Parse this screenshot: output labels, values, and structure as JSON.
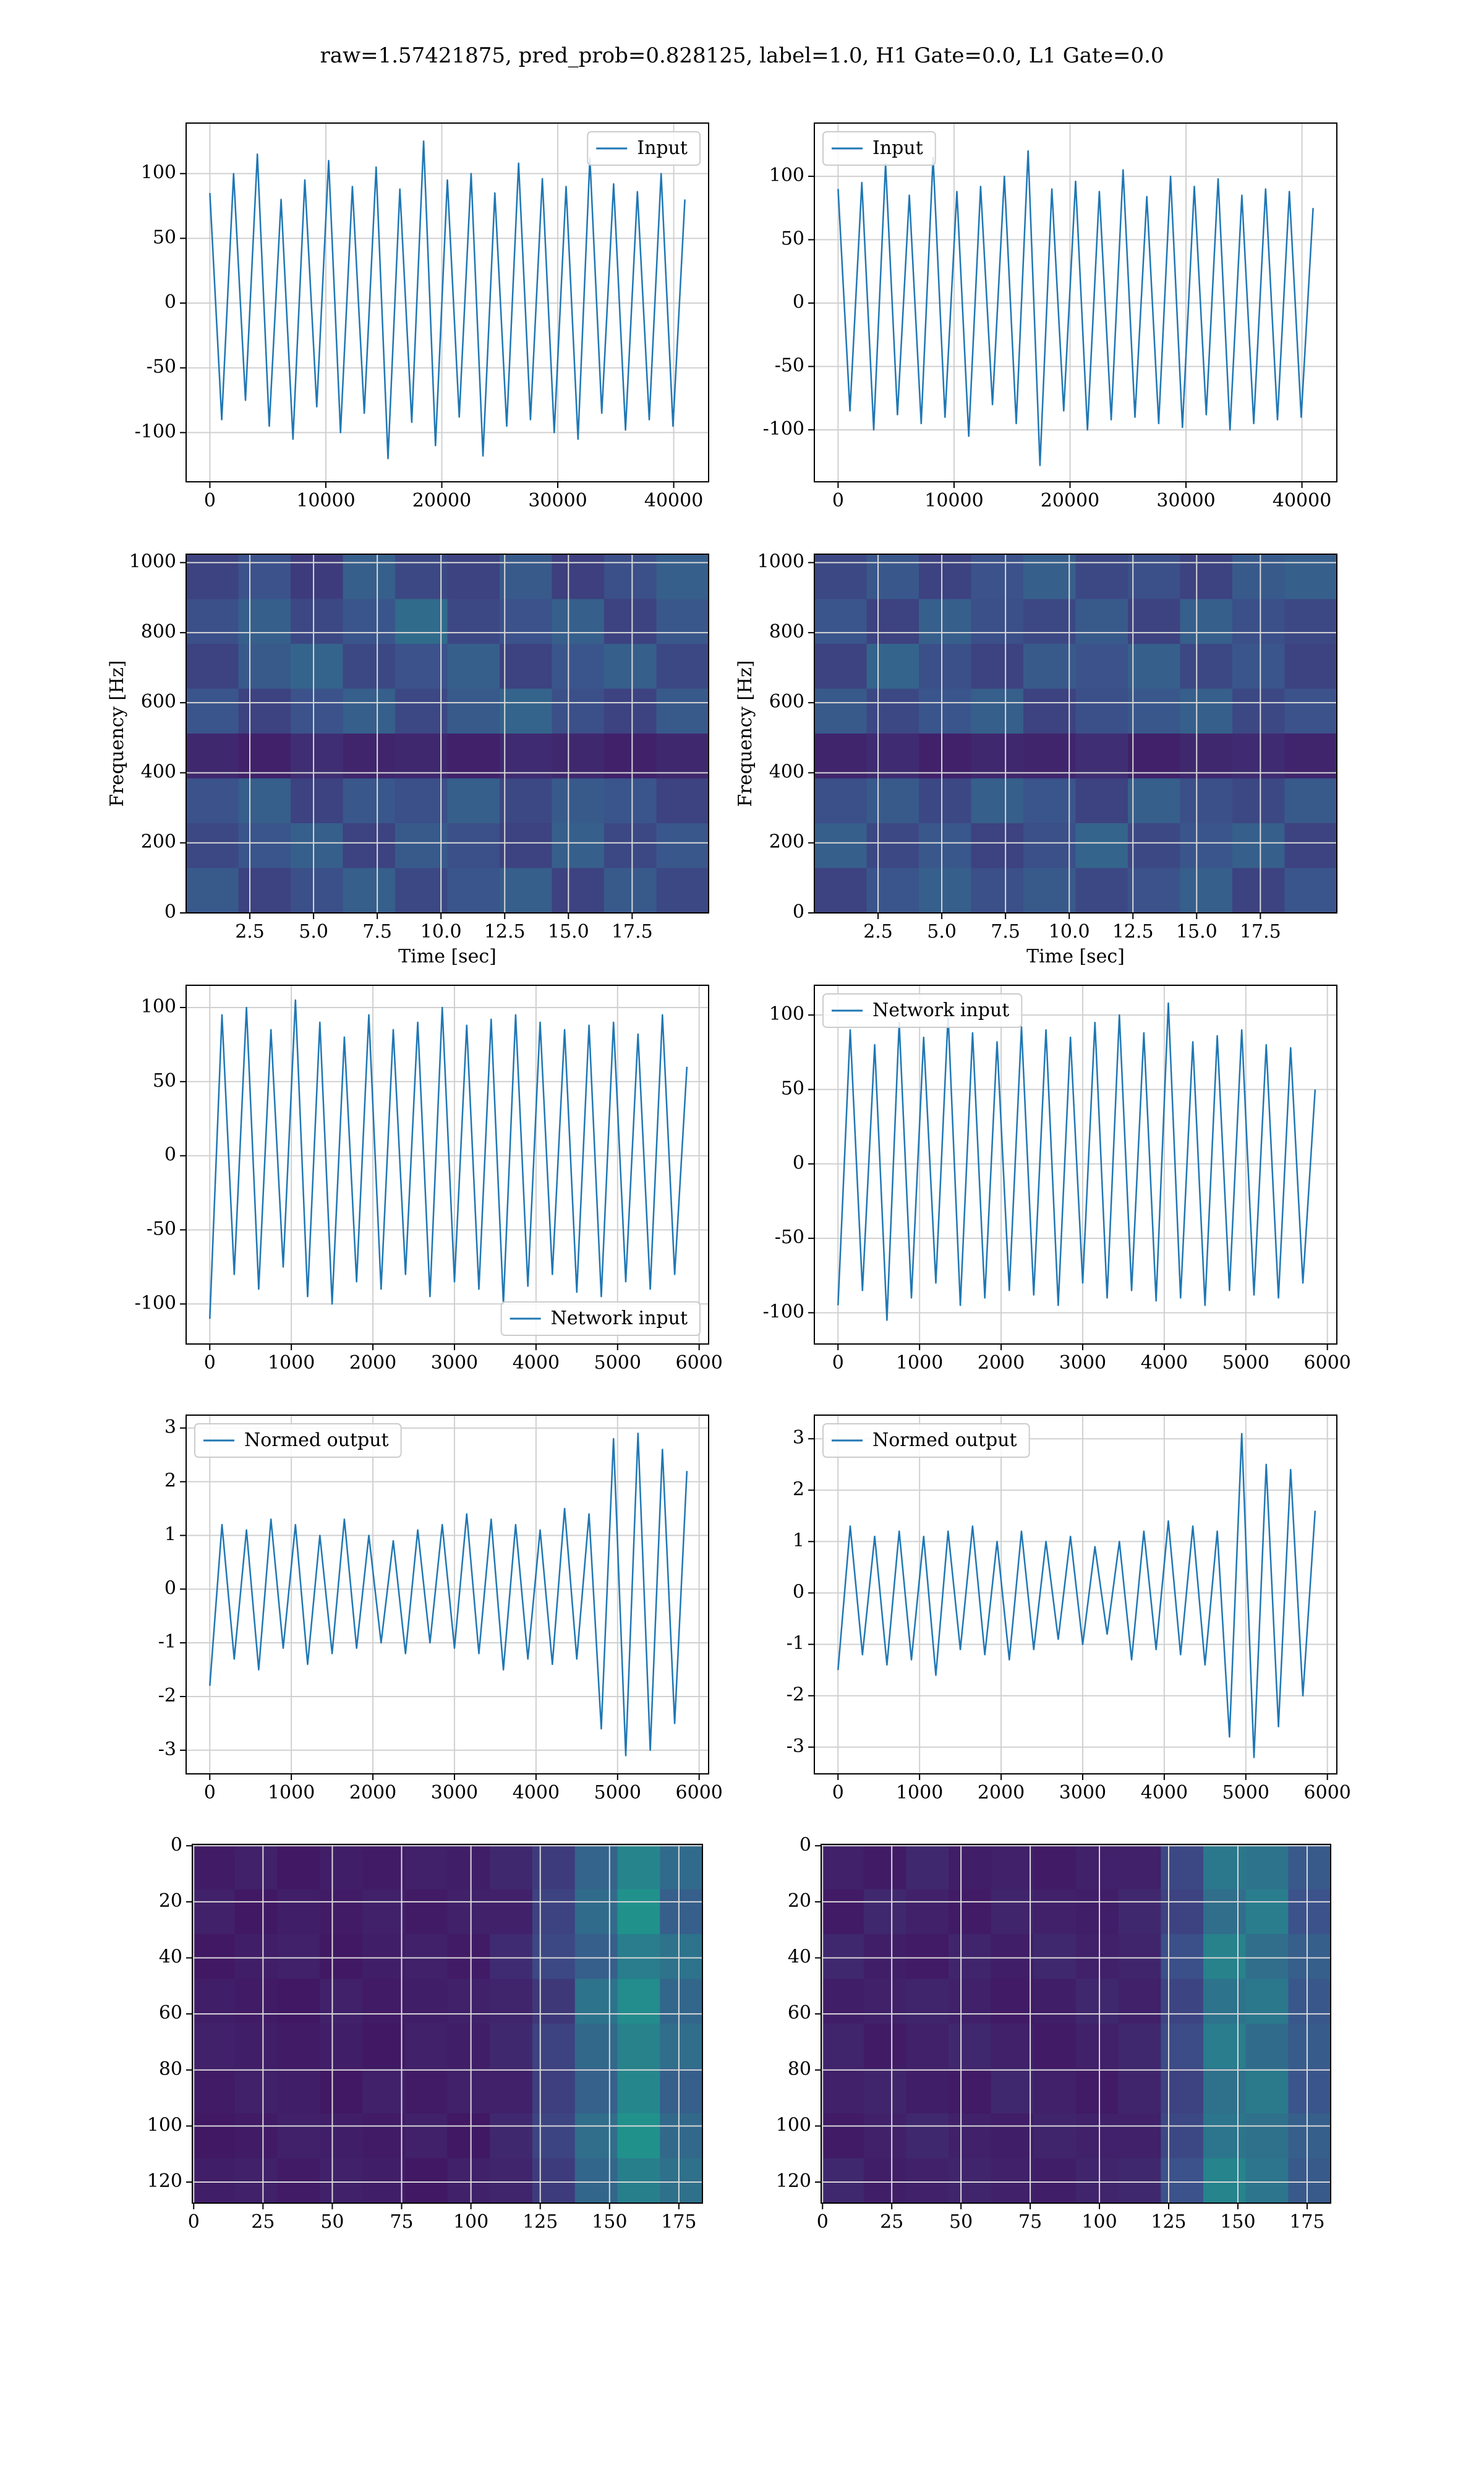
{
  "title": "raw=1.57421875, pred_prob=0.828125, label=1.0, H1 Gate=0.0, L1 Gate=0.0",
  "chart_data": [
    {
      "type": "line",
      "legend": "upper right",
      "grid": true,
      "xlim": [
        -2048,
        43008
      ],
      "ylim": [
        -138,
        139
      ],
      "xticks": [
        0,
        10000,
        20000,
        30000,
        40000
      ],
      "yticks": [
        -100,
        -50,
        0,
        50,
        100
      ],
      "x": [
        0,
        1024,
        2048,
        3072,
        4096,
        5120,
        6144,
        7168,
        8192,
        9216,
        10240,
        11264,
        12288,
        13312,
        14336,
        15360,
        16384,
        17408,
        18432,
        19456,
        20480,
        21504,
        22528,
        23552,
        24576,
        25600,
        26624,
        27648,
        28672,
        29696,
        30720,
        31744,
        32768,
        33792,
        34816,
        35840,
        36864,
        37888,
        38912,
        39936,
        40960
      ],
      "series": [
        {
          "name": "Input",
          "color": "#1f77b4",
          "values": [
            85,
            -90,
            100,
            -75,
            115,
            -95,
            80,
            -105,
            95,
            -80,
            110,
            -100,
            90,
            -85,
            105,
            -120,
            88,
            -92,
            125,
            -110,
            95,
            -88,
            100,
            -118,
            85,
            -95,
            108,
            -90,
            96,
            -100,
            90,
            -105,
            112,
            -85,
            92,
            -98,
            86,
            -90,
            100,
            -95,
            80
          ]
        }
      ]
    },
    {
      "type": "line",
      "legend": "upper left",
      "grid": true,
      "xlim": [
        -2048,
        43008
      ],
      "ylim": [
        -141,
        142
      ],
      "xticks": [
        0,
        10000,
        20000,
        30000,
        40000
      ],
      "yticks": [
        -100,
        -50,
        0,
        50,
        100
      ],
      "x": [
        0,
        1024,
        2048,
        3072,
        4096,
        5120,
        6144,
        7168,
        8192,
        9216,
        10240,
        11264,
        12288,
        13312,
        14336,
        15360,
        16384,
        17408,
        18432,
        19456,
        20480,
        21504,
        22528,
        23552,
        24576,
        25600,
        26624,
        27648,
        28672,
        29696,
        30720,
        31744,
        32768,
        33792,
        34816,
        35840,
        36864,
        37888,
        38912,
        39936,
        40960
      ],
      "series": [
        {
          "name": "Input",
          "color": "#1f77b4",
          "values": [
            90,
            -85,
            95,
            -100,
            110,
            -88,
            85,
            -95,
            115,
            -90,
            88,
            -105,
            92,
            -80,
            100,
            -95,
            120,
            -128,
            90,
            -85,
            96,
            -100,
            88,
            -92,
            105,
            -90,
            84,
            -95,
            100,
            -98,
            92,
            -88,
            98,
            -100,
            85,
            -95,
            90,
            -92,
            88,
            -90,
            75
          ]
        }
      ]
    },
    {
      "type": "heatmap",
      "colormap": "viridis",
      "grid": true,
      "xlabel": "Time [sec]",
      "ylabel": "Frequency [Hz]",
      "xlim": [
        0,
        20.5
      ],
      "ylim": [
        0,
        1024
      ],
      "xticks": [
        2.5,
        {
          "value": 5,
          "label": "5.0"
        },
        7.5,
        {
          "value": 10,
          "label": "10.0"
        },
        12.5,
        {
          "value": 15,
          "label": "15.0"
        },
        17.5
      ],
      "yticks": [
        0,
        200,
        400,
        600,
        800,
        1000
      ],
      "z": [
        [
          0.2,
          0.25,
          0.18,
          0.3,
          0.22,
          0.2,
          0.28,
          0.19,
          0.24,
          0.3
        ],
        [
          0.24,
          0.3,
          0.22,
          0.26,
          0.35,
          0.22,
          0.25,
          0.3,
          0.2,
          0.27
        ],
        [
          0.2,
          0.28,
          0.32,
          0.22,
          0.25,
          0.3,
          0.2,
          0.26,
          0.3,
          0.22
        ],
        [
          0.26,
          0.2,
          0.25,
          0.3,
          0.22,
          0.28,
          0.32,
          0.24,
          0.2,
          0.28
        ],
        [
          0.12,
          0.1,
          0.14,
          0.11,
          0.12,
          0.1,
          0.13,
          0.12,
          0.1,
          0.12
        ],
        [
          0.25,
          0.3,
          0.2,
          0.27,
          0.24,
          0.3,
          0.22,
          0.28,
          0.26,
          0.2
        ],
        [
          0.22,
          0.26,
          0.3,
          0.2,
          0.28,
          0.24,
          0.2,
          0.3,
          0.22,
          0.27
        ],
        [
          0.28,
          0.2,
          0.24,
          0.3,
          0.22,
          0.26,
          0.3,
          0.2,
          0.28,
          0.22
        ]
      ]
    },
    {
      "type": "heatmap",
      "colormap": "viridis",
      "grid": true,
      "xlabel": "Time [sec]",
      "ylabel": "Frequency [Hz]",
      "xlim": [
        0,
        20.5
      ],
      "ylim": [
        0,
        1024
      ],
      "xticks": [
        2.5,
        {
          "value": 5,
          "label": "5.0"
        },
        7.5,
        {
          "value": 10,
          "label": "10.0"
        },
        12.5,
        {
          "value": 15,
          "label": "15.0"
        },
        17.5
      ],
      "yticks": [
        0,
        200,
        400,
        600,
        800,
        1000
      ],
      "z": [
        [
          0.22,
          0.27,
          0.2,
          0.25,
          0.3,
          0.22,
          0.24,
          0.2,
          0.28,
          0.3
        ],
        [
          0.26,
          0.2,
          0.3,
          0.24,
          0.22,
          0.28,
          0.2,
          0.3,
          0.24,
          0.22
        ],
        [
          0.2,
          0.32,
          0.24,
          0.2,
          0.28,
          0.25,
          0.3,
          0.22,
          0.26,
          0.2
        ],
        [
          0.28,
          0.22,
          0.26,
          0.3,
          0.2,
          0.24,
          0.27,
          0.3,
          0.22,
          0.25
        ],
        [
          0.11,
          0.13,
          0.1,
          0.12,
          0.11,
          0.14,
          0.1,
          0.12,
          0.13,
          0.11
        ],
        [
          0.24,
          0.28,
          0.22,
          0.3,
          0.26,
          0.2,
          0.3,
          0.24,
          0.22,
          0.28
        ],
        [
          0.3,
          0.22,
          0.27,
          0.2,
          0.24,
          0.32,
          0.22,
          0.26,
          0.3,
          0.2
        ],
        [
          0.2,
          0.26,
          0.3,
          0.24,
          0.28,
          0.22,
          0.25,
          0.3,
          0.2,
          0.26
        ]
      ]
    },
    {
      "type": "line",
      "legend": "lower right",
      "grid": true,
      "xlim": [
        -290,
        6116
      ],
      "ylim": [
        -127,
        115
      ],
      "xticks": [
        0,
        1000,
        2000,
        3000,
        4000,
        5000,
        6000
      ],
      "yticks": [
        -100,
        -50,
        0,
        50,
        100
      ],
      "x": [
        0,
        150,
        300,
        450,
        600,
        750,
        900,
        1050,
        1200,
        1350,
        1500,
        1650,
        1800,
        1950,
        2100,
        2250,
        2400,
        2550,
        2700,
        2850,
        3000,
        3150,
        3300,
        3450,
        3600,
        3750,
        3900,
        4050,
        4200,
        4350,
        4500,
        4650,
        4800,
        4950,
        5100,
        5250,
        5400,
        5550,
        5700,
        5850
      ],
      "series": [
        {
          "name": "Network input",
          "color": "#1f77b4",
          "values": [
            -110,
            95,
            -80,
            100,
            -90,
            85,
            -75,
            105,
            -95,
            90,
            -100,
            80,
            -85,
            95,
            -90,
            85,
            -80,
            90,
            -95,
            100,
            -85,
            88,
            -90,
            92,
            -100,
            95,
            -88,
            90,
            -80,
            85,
            -92,
            88,
            -95,
            90,
            -85,
            82,
            -90,
            95,
            -80,
            60
          ]
        }
      ]
    },
    {
      "type": "line",
      "legend": "upper left",
      "grid": true,
      "xlim": [
        -290,
        6116
      ],
      "ylim": [
        -121,
        120
      ],
      "xticks": [
        0,
        1000,
        2000,
        3000,
        4000,
        5000,
        6000
      ],
      "yticks": [
        -100,
        -50,
        0,
        50,
        100
      ],
      "x": [
        0,
        150,
        300,
        450,
        600,
        750,
        900,
        1050,
        1200,
        1350,
        1500,
        1650,
        1800,
        1950,
        2100,
        2250,
        2400,
        2550,
        2700,
        2850,
        3000,
        3150,
        3300,
        3450,
        3600,
        3750,
        3900,
        4050,
        4200,
        4350,
        4500,
        4650,
        4800,
        4950,
        5100,
        5250,
        5400,
        5550,
        5700,
        5850
      ],
      "series": [
        {
          "name": "Network input",
          "color": "#1f77b4",
          "values": [
            -95,
            90,
            -85,
            80,
            -105,
            95,
            -90,
            85,
            -80,
            100,
            -95,
            88,
            -90,
            82,
            -85,
            92,
            -88,
            90,
            -95,
            85,
            -80,
            95,
            -90,
            100,
            -85,
            88,
            -92,
            108,
            -90,
            82,
            -95,
            86,
            -85,
            90,
            -88,
            80,
            -90,
            78,
            -80,
            50
          ]
        }
      ]
    },
    {
      "type": "line",
      "legend": "upper left",
      "grid": true,
      "xlim": [
        -290,
        6116
      ],
      "ylim": [
        -3.44,
        3.24
      ],
      "xticks": [
        0,
        1000,
        2000,
        3000,
        4000,
        5000,
        6000
      ],
      "yticks": [
        -3,
        -2,
        -1,
        0,
        1,
        2,
        3
      ],
      "x": [
        0,
        150,
        300,
        450,
        600,
        750,
        900,
        1050,
        1200,
        1350,
        1500,
        1650,
        1800,
        1950,
        2100,
        2250,
        2400,
        2550,
        2700,
        2850,
        3000,
        3150,
        3300,
        3450,
        3600,
        3750,
        3900,
        4050,
        4200,
        4350,
        4500,
        4650,
        4800,
        4950,
        5100,
        5250,
        5400,
        5550,
        5700,
        5850
      ],
      "series": [
        {
          "name": "Normed output",
          "color": "#1f77b4",
          "values": [
            -1.8,
            1.2,
            -1.3,
            1.1,
            -1.5,
            1.3,
            -1.1,
            1.2,
            -1.4,
            1.0,
            -1.2,
            1.3,
            -1.1,
            1.0,
            -1.0,
            0.9,
            -1.2,
            1.1,
            -1.0,
            1.2,
            -1.1,
            1.4,
            -1.2,
            1.3,
            -1.5,
            1.2,
            -1.3,
            1.1,
            -1.4,
            1.5,
            -1.3,
            1.4,
            -2.6,
            2.8,
            -3.1,
            2.9,
            -3.0,
            2.6,
            -2.5,
            2.2
          ]
        }
      ]
    },
    {
      "type": "line",
      "legend": "upper left",
      "grid": true,
      "xlim": [
        -290,
        6116
      ],
      "ylim": [
        -3.52,
        3.46
      ],
      "xticks": [
        0,
        1000,
        2000,
        3000,
        4000,
        5000,
        6000
      ],
      "yticks": [
        -3,
        -2,
        -1,
        0,
        1,
        2,
        3
      ],
      "x": [
        0,
        150,
        300,
        450,
        600,
        750,
        900,
        1050,
        1200,
        1350,
        1500,
        1650,
        1800,
        1950,
        2100,
        2250,
        2400,
        2550,
        2700,
        2850,
        3000,
        3150,
        3300,
        3450,
        3600,
        3750,
        3900,
        4050,
        4200,
        4350,
        4500,
        4650,
        4800,
        4950,
        5100,
        5250,
        5400,
        5550,
        5700,
        5850
      ],
      "series": [
        {
          "name": "Normed output",
          "color": "#1f77b4",
          "values": [
            -1.5,
            1.3,
            -1.2,
            1.1,
            -1.4,
            1.2,
            -1.3,
            1.1,
            -1.6,
            1.2,
            -1.1,
            1.3,
            -1.2,
            1.0,
            -1.3,
            1.2,
            -1.1,
            1.0,
            -0.9,
            1.1,
            -1.0,
            0.9,
            -0.8,
            1.0,
            -1.3,
            1.2,
            -1.1,
            1.4,
            -1.2,
            1.3,
            -1.4,
            1.2,
            -2.8,
            3.1,
            -3.2,
            2.5,
            -2.6,
            2.4,
            -2.0,
            1.6
          ]
        }
      ]
    },
    {
      "type": "heatmap",
      "colormap": "viridis",
      "grid": true,
      "xlim": [
        -0.5,
        183.5
      ],
      "ylim": [
        127.5,
        -0.5
      ],
      "xticks": [
        0,
        25,
        50,
        75,
        100,
        125,
        150,
        175
      ],
      "yticks": [
        0,
        20,
        40,
        60,
        80,
        100,
        120
      ],
      "z": [
        [
          0.08,
          0.1,
          0.07,
          0.09,
          0.08,
          0.1,
          0.09,
          0.12,
          0.18,
          0.32,
          0.45,
          0.35
        ],
        [
          0.1,
          0.07,
          0.09,
          0.08,
          0.1,
          0.08,
          0.1,
          0.1,
          0.2,
          0.35,
          0.5,
          0.3
        ],
        [
          0.07,
          0.09,
          0.1,
          0.07,
          0.09,
          0.1,
          0.08,
          0.13,
          0.22,
          0.3,
          0.42,
          0.38
        ],
        [
          0.09,
          0.08,
          0.07,
          0.1,
          0.08,
          0.09,
          0.1,
          0.11,
          0.17,
          0.38,
          0.48,
          0.33
        ],
        [
          0.1,
          0.09,
          0.08,
          0.09,
          0.07,
          0.1,
          0.09,
          0.12,
          0.2,
          0.34,
          0.44,
          0.36
        ],
        [
          0.08,
          0.1,
          0.09,
          0.07,
          0.1,
          0.08,
          0.1,
          0.1,
          0.19,
          0.31,
          0.46,
          0.3
        ],
        [
          0.07,
          0.08,
          0.1,
          0.09,
          0.08,
          0.1,
          0.07,
          0.12,
          0.21,
          0.36,
          0.5,
          0.34
        ],
        [
          0.09,
          0.1,
          0.08,
          0.1,
          0.09,
          0.07,
          0.1,
          0.11,
          0.18,
          0.33,
          0.43,
          0.37
        ]
      ]
    },
    {
      "type": "heatmap",
      "colormap": "viridis",
      "grid": true,
      "xlim": [
        -0.5,
        183.5
      ],
      "ylim": [
        127.5,
        -0.5
      ],
      "xticks": [
        0,
        25,
        50,
        75,
        100,
        125,
        150,
        175
      ],
      "yticks": [
        0,
        20,
        40,
        60,
        80,
        100,
        120
      ],
      "z": [
        [
          0.1,
          0.08,
          0.12,
          0.09,
          0.1,
          0.08,
          0.1,
          0.1,
          0.22,
          0.4,
          0.38,
          0.28
        ],
        [
          0.08,
          0.12,
          0.1,
          0.08,
          0.11,
          0.1,
          0.09,
          0.12,
          0.2,
          0.36,
          0.42,
          0.25
        ],
        [
          0.12,
          0.09,
          0.08,
          0.11,
          0.09,
          0.12,
          0.1,
          0.11,
          0.24,
          0.44,
          0.36,
          0.3
        ],
        [
          0.09,
          0.1,
          0.11,
          0.1,
          0.08,
          0.09,
          0.12,
          0.1,
          0.21,
          0.38,
          0.4,
          0.27
        ],
        [
          0.11,
          0.08,
          0.1,
          0.12,
          0.1,
          0.08,
          0.1,
          0.12,
          0.23,
          0.42,
          0.35,
          0.29
        ],
        [
          0.1,
          0.11,
          0.09,
          0.08,
          0.12,
          0.1,
          0.08,
          0.11,
          0.2,
          0.37,
          0.41,
          0.26
        ],
        [
          0.08,
          0.1,
          0.12,
          0.1,
          0.09,
          0.11,
          0.1,
          0.1,
          0.22,
          0.39,
          0.37,
          0.3
        ],
        [
          0.12,
          0.09,
          0.1,
          0.11,
          0.1,
          0.09,
          0.11,
          0.12,
          0.25,
          0.45,
          0.39,
          0.28
        ]
      ]
    }
  ]
}
